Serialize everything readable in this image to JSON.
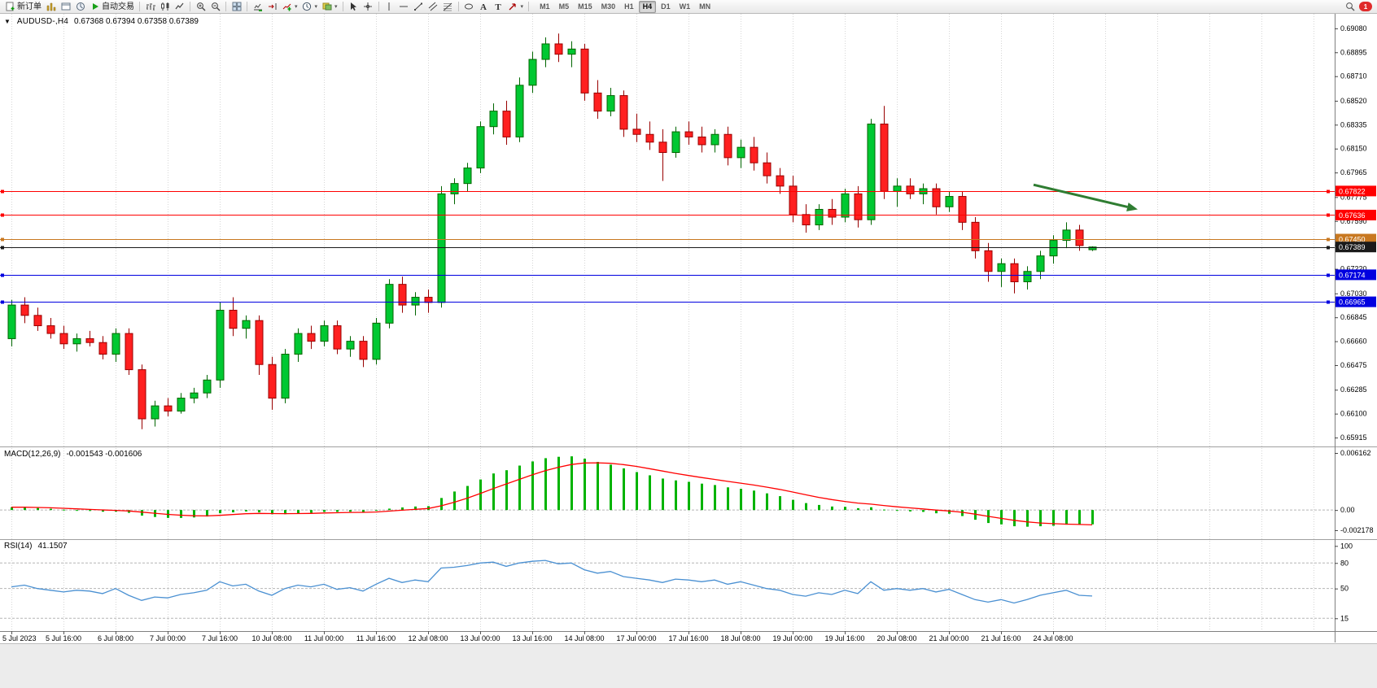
{
  "colors": {
    "bull": "#00c832",
    "bull_edge": "#006600",
    "bear": "#ff2020",
    "bear_edge": "#990000",
    "hline_red": "#ff0000",
    "hline_orange": "#c87820",
    "hline_blue": "#0000e0",
    "price_line": "#1a1a1a",
    "macd_hist": "#00b300",
    "macd_signal": "#ff0000",
    "rsi_line": "#4a90d2",
    "grid": "#d6d6d6",
    "level_dash": "#b5b5b5",
    "arrow": "#2f7d32",
    "axis_text": "#000000"
  },
  "toolbar": {
    "badge_count": "1",
    "timeframes": [
      "M1",
      "M5",
      "M15",
      "M30",
      "H1",
      "H4",
      "D1",
      "W1",
      "MN"
    ],
    "active_timeframe": "H4",
    "items": [
      {
        "name": "new-order",
        "icon": "new-order",
        "label": "新订单"
      },
      {
        "name": "market-watch",
        "icon": "market-watch"
      },
      {
        "name": "data-window",
        "icon": "data-window"
      },
      {
        "name": "navigator",
        "icon": "navigator"
      },
      {
        "name": "autotrading",
        "icon": "autotrading",
        "label": "自动交易"
      },
      {
        "sep": true
      },
      {
        "name": "chart-bars",
        "icon": "chart-bars"
      },
      {
        "name": "chart-candles",
        "icon": "chart-candles"
      },
      {
        "name": "chart-line",
        "icon": "chart-line"
      },
      {
        "sep": true
      },
      {
        "name": "zoom-in",
        "icon": "zoom-in"
      },
      {
        "name": "zoom-out",
        "icon": "zoom-out"
      },
      {
        "sep": true
      },
      {
        "name": "tile-windows",
        "icon": "tile-windows"
      },
      {
        "sep": true
      },
      {
        "name": "auto-scroll",
        "icon": "auto-scroll"
      },
      {
        "name": "chart-shift",
        "icon": "chart-shift"
      },
      {
        "name": "indicators",
        "icon": "indicators",
        "dropdown": true
      },
      {
        "name": "periods",
        "icon": "periods",
        "dropdown": true
      },
      {
        "name": "templates",
        "icon": "templates",
        "dropdown": true
      },
      {
        "sep": true
      },
      {
        "name": "cursor",
        "icon": "cursor"
      },
      {
        "name": "crosshair",
        "icon": "crosshair"
      },
      {
        "sep": true
      },
      {
        "name": "vertical-line",
        "icon": "vline"
      },
      {
        "name": "horizontal-line",
        "icon": "hline"
      },
      {
        "name": "trendline",
        "icon": "trendline"
      },
      {
        "name": "equidistant-channel",
        "icon": "channel"
      },
      {
        "name": "fibonacci-retracement",
        "icon": "fibonacci"
      },
      {
        "sep": true
      },
      {
        "name": "ellipse-tool",
        "icon": "ellipse"
      },
      {
        "name": "text-tool",
        "icon": "text"
      },
      {
        "name": "text-label-tool",
        "icon": "text-label"
      },
      {
        "name": "arrows-tool",
        "icon": "arrows",
        "dropdown": true
      },
      {
        "sep": true
      }
    ]
  },
  "chart_data": [
    {
      "type": "candlestick",
      "title": "AUDUSD-,H4",
      "ohlc_text": "0.67368 0.67394 0.67358 0.67389",
      "open": "0.67368",
      "high": "0.67394",
      "low": "0.67358",
      "close": "0.67389",
      "bars_per_label": 4,
      "x_labels": [
        "5 Jul 2023",
        "5 Jul 16:00",
        "6 Jul 08:00",
        "7 Jul 00:00",
        "7 Jul 16:00",
        "10 Jul 08:00",
        "11 Jul 00:00",
        "11 Jul 16:00",
        "12 Jul 08:00",
        "13 Jul 00:00",
        "13 Jul 16:00",
        "14 Jul 08:00",
        "17 Jul 00:00",
        "17 Jul 16:00",
        "18 Jul 08:00",
        "19 Jul 00:00",
        "19 Jul 16:00",
        "20 Jul 08:00",
        "21 Jul 00:00",
        "21 Jul 16:00",
        "24 Jul 08:00"
      ],
      "ylim": [
        0.65865,
        0.69161
      ],
      "y_ticks": [
        "0.69080",
        "0.68895",
        "0.68710",
        "0.68520",
        "0.68335",
        "0.68150",
        "0.67965",
        "0.67775",
        "0.67590",
        "0.67405",
        "0.67220",
        "0.67030",
        "0.66845",
        "0.66660",
        "0.66475",
        "0.66285",
        "0.66100",
        "0.65915"
      ],
      "hlines": [
        {
          "price": 0.67822,
          "label": "0.67822",
          "color": "red"
        },
        {
          "price": 0.67636,
          "label": "0.67636",
          "color": "red"
        },
        {
          "price": 0.6745,
          "label": "0.67450",
          "color": "orange"
        },
        {
          "price": 0.67174,
          "label": "0.67174",
          "color": "blue"
        },
        {
          "price": 0.66965,
          "label": "0.66965",
          "color": "blue"
        }
      ],
      "current_price": {
        "price": 0.67389,
        "label": "0.67389",
        "color": "black"
      },
      "arrow": {
        "x1_bar": 78.5,
        "y1_price": 0.6787,
        "x2_bar": 86.5,
        "y2_price": 0.6768
      },
      "ohlc": [
        [
          0.6668,
          0.6698,
          0.6662,
          0.6694
        ],
        [
          0.6694,
          0.67,
          0.668,
          0.6686
        ],
        [
          0.6686,
          0.6692,
          0.6674,
          0.6678
        ],
        [
          0.6678,
          0.6684,
          0.6668,
          0.6672
        ],
        [
          0.6672,
          0.6678,
          0.666,
          0.6664
        ],
        [
          0.6664,
          0.6672,
          0.6658,
          0.6668
        ],
        [
          0.6668,
          0.6674,
          0.6662,
          0.6665
        ],
        [
          0.6665,
          0.667,
          0.6652,
          0.6656
        ],
        [
          0.6656,
          0.6676,
          0.665,
          0.6672
        ],
        [
          0.6672,
          0.6676,
          0.664,
          0.6644
        ],
        [
          0.6644,
          0.6648,
          0.6598,
          0.6606
        ],
        [
          0.6606,
          0.662,
          0.66,
          0.6616
        ],
        [
          0.6616,
          0.6622,
          0.6608,
          0.6612
        ],
        [
          0.6612,
          0.6626,
          0.661,
          0.6622
        ],
        [
          0.6622,
          0.663,
          0.6618,
          0.6626
        ],
        [
          0.6626,
          0.664,
          0.6622,
          0.6636
        ],
        [
          0.6636,
          0.6696,
          0.663,
          0.669
        ],
        [
          0.669,
          0.67,
          0.667,
          0.6676
        ],
        [
          0.6676,
          0.6686,
          0.6668,
          0.6682
        ],
        [
          0.6682,
          0.6686,
          0.664,
          0.6648
        ],
        [
          0.6648,
          0.6654,
          0.6613,
          0.6622
        ],
        [
          0.6622,
          0.666,
          0.6618,
          0.6656
        ],
        [
          0.6656,
          0.6676,
          0.665,
          0.6672
        ],
        [
          0.6672,
          0.6678,
          0.666,
          0.6666
        ],
        [
          0.6666,
          0.6682,
          0.6662,
          0.6678
        ],
        [
          0.6678,
          0.6682,
          0.6656,
          0.666
        ],
        [
          0.666,
          0.667,
          0.6654,
          0.6666
        ],
        [
          0.6666,
          0.667,
          0.6646,
          0.6652
        ],
        [
          0.6652,
          0.6684,
          0.6648,
          0.668
        ],
        [
          0.668,
          0.6714,
          0.6676,
          0.671
        ],
        [
          0.671,
          0.6716,
          0.6688,
          0.6694
        ],
        [
          0.6694,
          0.6704,
          0.6686,
          0.67
        ],
        [
          0.67,
          0.6706,
          0.6688,
          0.6696
        ],
        [
          0.6696,
          0.6786,
          0.6692,
          0.678
        ],
        [
          0.678,
          0.6792,
          0.6772,
          0.6788
        ],
        [
          0.6788,
          0.6804,
          0.6782,
          0.68
        ],
        [
          0.68,
          0.6836,
          0.6796,
          0.6832
        ],
        [
          0.6832,
          0.685,
          0.6826,
          0.6844
        ],
        [
          0.6844,
          0.6852,
          0.6818,
          0.6824
        ],
        [
          0.6824,
          0.687,
          0.682,
          0.6864
        ],
        [
          0.6864,
          0.689,
          0.6858,
          0.6884
        ],
        [
          0.6884,
          0.6901,
          0.6878,
          0.6896
        ],
        [
          0.6896,
          0.6904,
          0.6882,
          0.6888
        ],
        [
          0.6888,
          0.6898,
          0.6878,
          0.6892
        ],
        [
          0.6892,
          0.6896,
          0.6852,
          0.6858
        ],
        [
          0.6858,
          0.6868,
          0.6838,
          0.6844
        ],
        [
          0.6844,
          0.6862,
          0.684,
          0.6856
        ],
        [
          0.6856,
          0.686,
          0.6824,
          0.683
        ],
        [
          0.683,
          0.6842,
          0.682,
          0.6826
        ],
        [
          0.6826,
          0.6836,
          0.6814,
          0.682
        ],
        [
          0.682,
          0.683,
          0.679,
          0.6812
        ],
        [
          0.6812,
          0.6832,
          0.6808,
          0.6828
        ],
        [
          0.6828,
          0.6836,
          0.6818,
          0.6824
        ],
        [
          0.6824,
          0.6832,
          0.6812,
          0.6818
        ],
        [
          0.6818,
          0.683,
          0.6812,
          0.6826
        ],
        [
          0.6826,
          0.6832,
          0.6802,
          0.6808
        ],
        [
          0.6808,
          0.6822,
          0.68,
          0.6816
        ],
        [
          0.6816,
          0.6824,
          0.6798,
          0.6804
        ],
        [
          0.6804,
          0.6812,
          0.6788,
          0.6794
        ],
        [
          0.6794,
          0.68,
          0.678,
          0.6786
        ],
        [
          0.6786,
          0.6794,
          0.6758,
          0.6764
        ],
        [
          0.6764,
          0.6772,
          0.675,
          0.6756
        ],
        [
          0.6756,
          0.6772,
          0.6752,
          0.6768
        ],
        [
          0.6768,
          0.6776,
          0.6756,
          0.6762
        ],
        [
          0.6762,
          0.6784,
          0.6758,
          0.678
        ],
        [
          0.678,
          0.6786,
          0.6754,
          0.676
        ],
        [
          0.676,
          0.6838,
          0.6756,
          0.6834
        ],
        [
          0.6834,
          0.6848,
          0.6776,
          0.6782
        ],
        [
          0.6782,
          0.6792,
          0.677,
          0.6786
        ],
        [
          0.6786,
          0.6792,
          0.6776,
          0.678
        ],
        [
          0.678,
          0.6788,
          0.6772,
          0.6784
        ],
        [
          0.6784,
          0.6788,
          0.6764,
          0.677
        ],
        [
          0.677,
          0.6782,
          0.6766,
          0.6778
        ],
        [
          0.6778,
          0.6782,
          0.6752,
          0.6758
        ],
        [
          0.6758,
          0.6762,
          0.673,
          0.6736
        ],
        [
          0.6736,
          0.6742,
          0.6712,
          0.672
        ],
        [
          0.672,
          0.673,
          0.6708,
          0.6726
        ],
        [
          0.6726,
          0.673,
          0.6703,
          0.6712
        ],
        [
          0.6712,
          0.6724,
          0.6706,
          0.672
        ],
        [
          0.672,
          0.6736,
          0.6714,
          0.6732
        ],
        [
          0.6732,
          0.6748,
          0.6726,
          0.6744
        ],
        [
          0.6744,
          0.6758,
          0.6738,
          0.6752
        ],
        [
          0.6752,
          0.6756,
          0.6736,
          0.674
        ],
        [
          0.67368,
          0.67394,
          0.67358,
          0.67389
        ]
      ]
    },
    {
      "type": "macd",
      "label": "MACD(12,26,9)",
      "values_text": "-0.001543 -0.001606",
      "ylim": [
        -0.00306,
        0.00669
      ],
      "y_ticks": [
        {
          "label": "0.006162",
          "value": 0.006162
        },
        {
          "label": "0.00",
          "value": 0
        },
        {
          "label": "-0.002178",
          "value": -0.002178
        }
      ],
      "main": [
        0.0003,
        0.00028,
        0.00022,
        0.00014,
        4e-05,
        -4e-05,
        -0.0001,
        -0.00018,
        -0.00018,
        -0.0003,
        -0.0006,
        -0.00075,
        -0.00085,
        -0.00085,
        -0.0008,
        -0.0007,
        -0.00035,
        -0.00025,
        -0.00015,
        -0.00025,
        -0.00045,
        -0.00045,
        -0.00035,
        -0.0003,
        -0.0002,
        -0.0002,
        -0.00018,
        -0.00022,
        -8e-05,
        0.00015,
        0.00028,
        0.00038,
        0.00042,
        0.0013,
        0.002,
        0.0026,
        0.0033,
        0.00395,
        0.0043,
        0.0048,
        0.00525,
        0.0056,
        0.00575,
        0.0058,
        0.00555,
        0.0052,
        0.0049,
        0.0045,
        0.0041,
        0.00375,
        0.0034,
        0.0032,
        0.00305,
        0.00285,
        0.0027,
        0.00245,
        0.0023,
        0.0021,
        0.0018,
        0.0015,
        0.0011,
        0.00075,
        0.00055,
        0.00038,
        0.00035,
        0.0002,
        0.0003,
        5e-05,
        -5e-05,
        -0.00015,
        -0.0002,
        -0.00035,
        -0.0004,
        -0.00065,
        -0.00105,
        -0.0014,
        -0.00155,
        -0.00175,
        -0.0018,
        -0.00175,
        -0.0017,
        -0.00158,
        -0.00155,
        -0.001543
      ],
      "signal": [
        0.0003,
        0.0003,
        0.00028,
        0.00024,
        0.00019,
        0.00013,
        7e-05,
        1e-05,
        -4e-05,
        -0.0001,
        -0.00022,
        -0.00035,
        -0.00047,
        -0.00056,
        -0.00062,
        -0.00064,
        -0.00057,
        -0.00049,
        -0.0004,
        -0.00036,
        -0.00038,
        -0.00039,
        -0.00038,
        -0.00036,
        -0.00032,
        -0.00029,
        -0.00026,
        -0.00025,
        -0.00021,
        -0.00012,
        -2e-05,
        8e-05,
        0.00016,
        0.00045,
        0.00084,
        0.00128,
        0.00178,
        0.00232,
        0.00282,
        0.00331,
        0.0038,
        0.00425,
        0.00462,
        0.00492,
        0.00508,
        0.0051,
        0.00505,
        0.00491,
        0.00471,
        0.00447,
        0.00421,
        0.00396,
        0.00373,
        0.00351,
        0.00331,
        0.0031,
        0.0029,
        0.0027,
        0.00247,
        0.00223,
        0.00195,
        0.00165,
        0.00137,
        0.00113,
        0.00093,
        0.00075,
        0.00064,
        0.00049,
        0.00035,
        0.00023,
        0.00012,
        0,
        -0.0001,
        -0.00024,
        -0.00044,
        -0.00068,
        -0.0009,
        -0.00111,
        -0.00128,
        -0.0014,
        -0.00147,
        -0.00152,
        -0.00156,
        -0.001606
      ]
    },
    {
      "type": "rsi",
      "label": "RSI(14)",
      "value_text": "41.1507",
      "ylim": [
        0,
        107
      ],
      "levels": [
        80,
        50,
        15
      ],
      "y_ticks": [
        {
          "label": "100",
          "value": 100
        },
        {
          "label": "80",
          "value": 80
        },
        {
          "label": "50",
          "value": 50
        },
        {
          "label": "15",
          "value": 15
        }
      ],
      "values": [
        52,
        54,
        50,
        48,
        46,
        48,
        47,
        44,
        50,
        42,
        36,
        40,
        39,
        43,
        45,
        48,
        58,
        53,
        55,
        47,
        42,
        50,
        54,
        52,
        55,
        49,
        51,
        47,
        55,
        62,
        57,
        60,
        58,
        74,
        75,
        77,
        80,
        81,
        76,
        80,
        82,
        83,
        79,
        80,
        72,
        68,
        70,
        64,
        62,
        60,
        57,
        61,
        60,
        58,
        60,
        55,
        58,
        54,
        50,
        48,
        43,
        41,
        45,
        43,
        48,
        44,
        58,
        48,
        50,
        48,
        50,
        46,
        49,
        43,
        37,
        34,
        37,
        33,
        37,
        42,
        45,
        48,
        42,
        41.15
      ]
    }
  ]
}
